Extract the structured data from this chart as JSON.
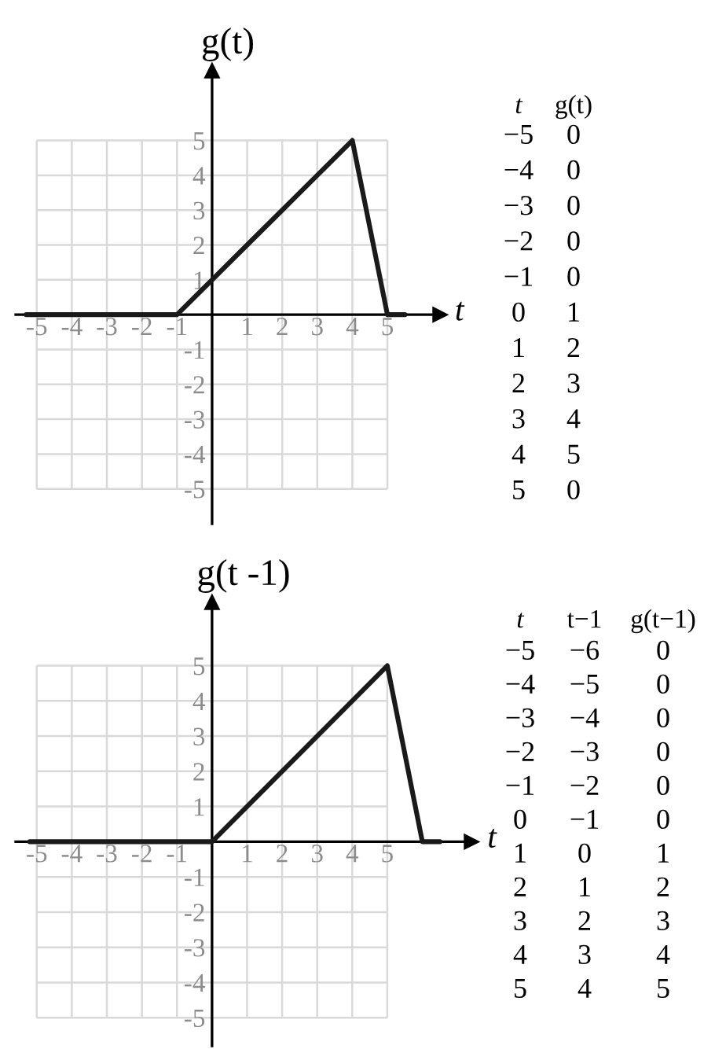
{
  "chart_data": [
    {
      "type": "line",
      "title": "g(t)",
      "xlabel": "t",
      "xlim": [
        -5.6,
        6.5
      ],
      "ylim": [
        -6,
        7
      ],
      "xticks": [
        -5,
        -4,
        -3,
        -2,
        -1,
        1,
        2,
        3,
        4,
        5
      ],
      "yticks": [
        -5,
        -4,
        -3,
        -2,
        -1,
        1,
        2,
        3,
        4,
        5
      ],
      "grid": true,
      "series": [
        {
          "color": "#1a1a1a",
          "x": [
            -5.3,
            -5,
            -4,
            -3,
            -2,
            -1,
            0,
            1,
            2,
            3,
            4,
            5,
            5.5
          ],
          "values": [
            0,
            0,
            0,
            0,
            0,
            0,
            1,
            2,
            3,
            4,
            5,
            0,
            0
          ]
        }
      ],
      "annotations": [
        "t",
        "−5",
        "−4",
        "−3",
        "−2",
        "−1",
        "0",
        "1",
        "2",
        "3",
        "4",
        "5",
        "g(t)",
        "0",
        "0",
        "0",
        "0",
        "0",
        "1",
        "2",
        "3",
        "4",
        "5",
        "0"
      ]
    },
    {
      "type": "line",
      "title": "g(t -1)",
      "xlabel": "t",
      "xlim": [
        -5.6,
        7.4
      ],
      "ylim": [
        -5.8,
        6.8
      ],
      "xticks": [
        -5,
        -4,
        -3,
        -2,
        -1,
        1,
        2,
        3,
        4,
        5
      ],
      "yticks": [
        -5,
        -4,
        -3,
        -2,
        -1,
        1,
        2,
        3,
        4,
        5
      ],
      "grid": true,
      "series": [
        {
          "color": "#1a1a1a",
          "x": [
            -5.2,
            -5,
            -4,
            -3,
            -2,
            -1,
            0,
            1,
            2,
            3,
            4,
            5,
            6,
            6.5
          ],
          "values": [
            0,
            0,
            0,
            0,
            0,
            0,
            0,
            1,
            2,
            3,
            4,
            5,
            0,
            0
          ]
        }
      ],
      "annotations": [
        "t",
        "−5",
        "−4",
        "−3",
        "−2",
        "−1",
        "0",
        "1",
        "2",
        "3",
        "4",
        "5",
        "t−1",
        "−6",
        "−5",
        "−4",
        "−3",
        "−2",
        "−1",
        "0",
        "1",
        "2",
        "3",
        "4",
        "g(t−1)",
        "0",
        "0",
        "0",
        "0",
        "0",
        "0",
        "1",
        "2",
        "3",
        "4",
        "5"
      ]
    }
  ]
}
